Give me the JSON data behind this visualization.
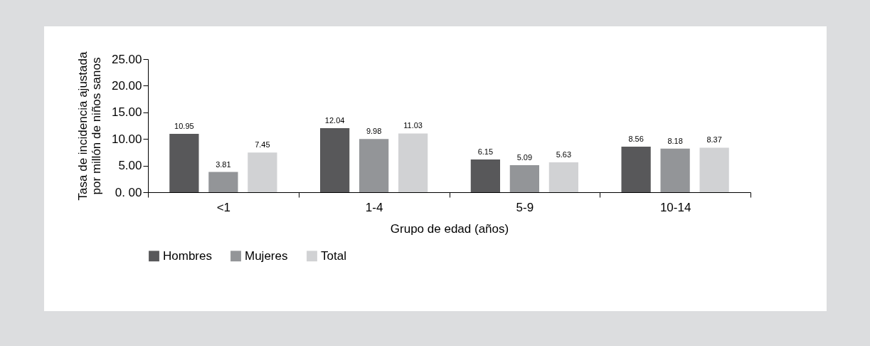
{
  "chart_data": {
    "type": "bar",
    "xlabel": "Grupo de edad (años)",
    "ylabel": "Tasa de incidencia ajustada\npor millón de niños sanos",
    "categories": [
      "<1",
      "1-4",
      "5-9",
      "10-14"
    ],
    "series": [
      {
        "name": "Hombres",
        "color": "#58585a",
        "values": [
          10.95,
          12.04,
          6.15,
          8.56
        ]
      },
      {
        "name": "Mujeres",
        "color": "#939598",
        "values": [
          3.81,
          9.98,
          5.09,
          8.18
        ]
      },
      {
        "name": "Total",
        "color": "#d1d2d4",
        "values": [
          7.45,
          11.03,
          5.63,
          8.37
        ]
      }
    ],
    "ylim": [
      0,
      25
    ],
    "yticks": [
      {
        "value": 0,
        "label": "0. 00"
      },
      {
        "value": 5,
        "label": "5.00"
      },
      {
        "value": 10,
        "label": "10.00"
      },
      {
        "value": 15,
        "label": "15.00"
      },
      {
        "value": 20,
        "label": "20.00"
      },
      {
        "value": 25,
        "label": "25.00"
      }
    ],
    "data_labels": true,
    "legend": "bottom"
  }
}
